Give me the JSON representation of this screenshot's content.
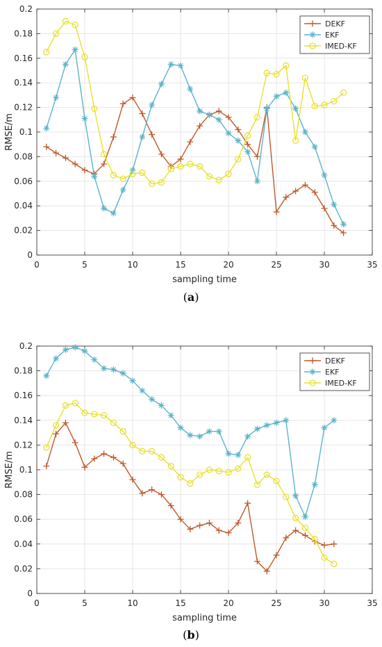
{
  "colors": {
    "DEKF": "#c0582a",
    "EKF": "#5bb3c9",
    "IMED-KF": "#e9e02c",
    "grid": "#e6e6e6",
    "axis": "#262626"
  },
  "chart_data": [
    {
      "type": "line",
      "panel_label": "a",
      "xlabel": "sampling time",
      "ylabel": "RMSE/m",
      "xlim": [
        0,
        35
      ],
      "ylim": [
        0,
        0.2
      ],
      "xticks": [
        "0",
        "5",
        "10",
        "15",
        "20",
        "25",
        "30",
        "35"
      ],
      "yticks": [
        "0",
        "0.02",
        "0.04",
        "0.06",
        "0.08",
        "0.1",
        "0.12",
        "0.14",
        "0.16",
        "0.18",
        "0.2"
      ],
      "grid": true,
      "legend_position": "top-right",
      "x": [
        1,
        2,
        3,
        4,
        5,
        6,
        7,
        8,
        9,
        10,
        11,
        12,
        13,
        14,
        15,
        16,
        17,
        18,
        19,
        20,
        21,
        22,
        23,
        24,
        25,
        26,
        27,
        28,
        29,
        30,
        31,
        32
      ],
      "series": [
        {
          "name": "DEKF",
          "marker": "plus",
          "values": [
            0.088,
            0.083,
            0.079,
            0.074,
            0.069,
            0.066,
            0.074,
            0.096,
            0.123,
            0.128,
            0.115,
            0.098,
            0.082,
            0.072,
            0.078,
            0.092,
            0.105,
            0.114,
            0.117,
            0.112,
            0.102,
            0.09,
            0.08,
            0.12,
            0.035,
            0.047,
            0.052,
            0.057,
            0.051,
            0.038,
            0.024,
            0.018
          ]
        },
        {
          "name": "EKF",
          "marker": "star",
          "values": [
            0.103,
            0.128,
            0.155,
            0.167,
            0.111,
            0.064,
            0.038,
            0.034,
            0.053,
            0.069,
            0.096,
            0.122,
            0.139,
            0.155,
            0.154,
            0.135,
            0.117,
            0.114,
            0.11,
            0.099,
            0.093,
            0.084,
            0.06,
            0.119,
            0.129,
            0.132,
            0.119,
            0.1,
            0.088,
            0.065,
            0.041,
            0.025
          ]
        },
        {
          "name": "IMED-KF",
          "marker": "circle",
          "values": [
            0.165,
            0.18,
            0.19,
            0.187,
            0.161,
            0.119,
            0.082,
            0.065,
            0.062,
            0.066,
            0.067,
            0.058,
            0.059,
            0.07,
            0.072,
            0.074,
            0.072,
            0.064,
            0.061,
            0.066,
            0.078,
            0.097,
            0.112,
            0.148,
            0.147,
            0.154,
            0.093,
            0.144,
            0.121,
            0.122,
            0.125,
            0.132
          ]
        }
      ]
    },
    {
      "type": "line",
      "panel_label": "b",
      "xlabel": "sampling time",
      "ylabel": "RMSE/m",
      "xlim": [
        0,
        35
      ],
      "ylim": [
        0,
        0.2
      ],
      "xticks": [
        "0",
        "5",
        "10",
        "15",
        "20",
        "25",
        "30",
        "35"
      ],
      "yticks": [
        "0",
        "0.02",
        "0.04",
        "0.06",
        "0.08",
        "0.1",
        "0.12",
        "0.14",
        "0.16",
        "0.18",
        "0.2"
      ],
      "grid": true,
      "legend_position": "top-right",
      "x": [
        1,
        2,
        3,
        4,
        5,
        6,
        7,
        8,
        9,
        10,
        11,
        12,
        13,
        14,
        15,
        16,
        17,
        18,
        19,
        20,
        21,
        22,
        23,
        24,
        25,
        26,
        27,
        28,
        29,
        30,
        31
      ],
      "series": [
        {
          "name": "DEKF",
          "marker": "plus",
          "values": [
            0.103,
            0.129,
            0.138,
            0.122,
            0.102,
            0.109,
            0.113,
            0.11,
            0.105,
            0.092,
            0.081,
            0.084,
            0.08,
            0.071,
            0.06,
            0.052,
            0.055,
            0.057,
            0.051,
            0.049,
            0.057,
            0.073,
            0.026,
            0.018,
            0.031,
            0.045,
            0.051,
            0.047,
            0.042,
            0.039,
            0.04
          ]
        },
        {
          "name": "EKF",
          "marker": "star",
          "values": [
            0.176,
            0.19,
            0.197,
            0.199,
            0.196,
            0.189,
            0.182,
            0.181,
            0.178,
            0.172,
            0.164,
            0.157,
            0.152,
            0.144,
            0.134,
            0.128,
            0.127,
            0.131,
            0.131,
            0.113,
            0.112,
            0.127,
            0.133,
            0.136,
            0.138,
            0.14,
            0.079,
            0.062,
            0.088,
            0.134,
            0.14
          ]
        },
        {
          "name": "IMED-KF",
          "marker": "circle",
          "values": [
            0.118,
            0.136,
            0.152,
            0.154,
            0.146,
            0.145,
            0.144,
            0.138,
            0.131,
            0.12,
            0.115,
            0.115,
            0.11,
            0.103,
            0.094,
            0.089,
            0.096,
            0.1,
            0.099,
            0.098,
            0.101,
            0.11,
            0.088,
            0.096,
            0.091,
            0.078,
            0.061,
            0.053,
            0.044,
            0.029,
            0.024
          ]
        }
      ]
    }
  ]
}
